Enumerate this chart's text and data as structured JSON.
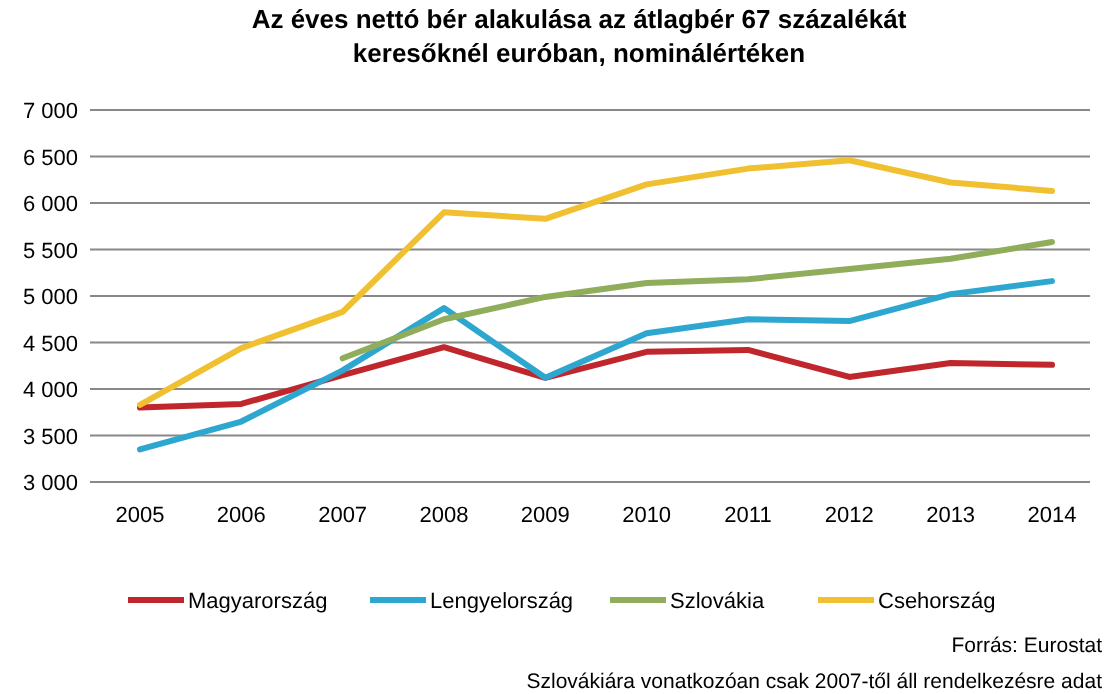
{
  "chart_data": {
    "type": "line",
    "title": "Az éves nettó bér alakulása az átlagbér 67 százalékát keresőknél euróban, nominálértéken",
    "categories": [
      "2005",
      "2006",
      "2007",
      "2008",
      "2009",
      "2010",
      "2011",
      "2012",
      "2013",
      "2014"
    ],
    "series": [
      {
        "name": "Magyarország",
        "color": "#c0272d",
        "values": [
          3800,
          3840,
          4150,
          4450,
          4120,
          4400,
          4420,
          4130,
          4280,
          4260
        ]
      },
      {
        "name": "Lengyelország",
        "color": "#2ea7d0",
        "values": [
          3350,
          3650,
          4200,
          4870,
          4120,
          4600,
          4750,
          4730,
          5020,
          5160
        ]
      },
      {
        "name": "Szlovákia",
        "color": "#8fad5a",
        "values": [
          null,
          null,
          4330,
          4750,
          4990,
          5140,
          5180,
          5290,
          5400,
          5580
        ]
      },
      {
        "name": "Csehország",
        "color": "#f0c030",
        "values": [
          3830,
          4440,
          4830,
          5900,
          5830,
          6200,
          6370,
          6460,
          6220,
          6130
        ]
      }
    ],
    "ylim": [
      3000,
      7000
    ],
    "yticks": [
      {
        "value": 3000,
        "label": "3 000"
      },
      {
        "value": 3500,
        "label": "3 500"
      },
      {
        "value": 4000,
        "label": "4 000"
      },
      {
        "value": 4500,
        "label": "4 500"
      },
      {
        "value": 5000,
        "label": "5 000"
      },
      {
        "value": 5500,
        "label": "5 500"
      },
      {
        "value": 6000,
        "label": "6 000"
      },
      {
        "value": 6500,
        "label": "6 500"
      },
      {
        "value": 7000,
        "label": "7 000"
      }
    ],
    "grid": "y",
    "legend": "bottom",
    "marker": "none",
    "line_style": "solid",
    "annotations": [
      "Forrás: Eurostat",
      "Szlovákiára vonatkozóan csak 2007-től áll rendelkezésre adat"
    ]
  }
}
